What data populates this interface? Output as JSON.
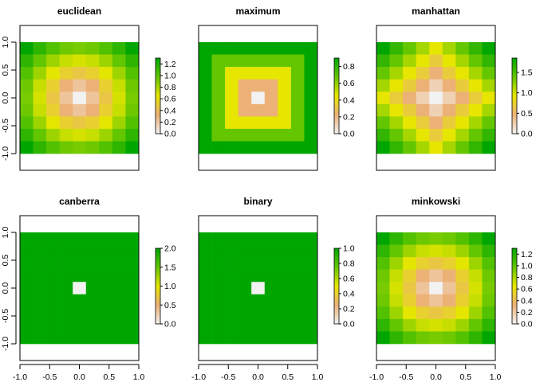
{
  "figure": {
    "layout": "2x3 grid of raster distance maps with color legends",
    "colors": {
      "ramp": [
        "#f2f2f2",
        "#ecb176",
        "#e6e600",
        "#63c600",
        "#00a600"
      ],
      "frame": "#000000"
    }
  },
  "chart_data": [
    {
      "type": "heatmap",
      "title": "euclidean",
      "xlim": [
        -1,
        1
      ],
      "ylim": [
        -1.3,
        1.3
      ],
      "x_ticks": [
        "-1.0",
        "-0.5",
        "0.0",
        "0.5",
        "1.0"
      ],
      "y_ticks": [
        "-1.0",
        "-0.5",
        "0.0",
        "0.5",
        "1.0"
      ],
      "show_x_axis": false,
      "show_y_axis": true,
      "grid": {
        "nrow": 9,
        "ncol": 9,
        "x_range": [
          -1,
          1
        ],
        "y_range": [
          -1,
          1
        ],
        "cell_value": "euclidean distance from center cell"
      },
      "value_range": [
        0,
        1.41
      ],
      "legend": {
        "range": [
          0,
          1.3
        ],
        "ticks": [
          "0.0",
          "0.2",
          "0.4",
          "0.6",
          "0.8",
          "1.0",
          "1.2"
        ]
      }
    },
    {
      "type": "heatmap",
      "title": "maximum",
      "xlim": [
        -1,
        1
      ],
      "ylim": [
        -1.3,
        1.3
      ],
      "x_ticks": [
        "-1.0",
        "-0.5",
        "0.0",
        "0.5",
        "1.0"
      ],
      "y_ticks": [
        "-1.0",
        "-0.5",
        "0.0",
        "0.5",
        "1.0"
      ],
      "show_x_axis": false,
      "show_y_axis": false,
      "grid": {
        "nrow": 9,
        "ncol": 9,
        "x_range": [
          -1,
          1
        ],
        "y_range": [
          -1,
          1
        ],
        "cell_value": "maximum (chebyshev) distance from center cell"
      },
      "value_range": [
        0,
        1.0
      ],
      "legend": {
        "range": [
          0,
          0.9
        ],
        "ticks": [
          "0.0",
          "0.2",
          "0.4",
          "0.6",
          "0.8"
        ]
      }
    },
    {
      "type": "heatmap",
      "title": "manhattan",
      "xlim": [
        -1,
        1
      ],
      "ylim": [
        -1.3,
        1.3
      ],
      "x_ticks": [
        "-1.0",
        "-0.5",
        "0.0",
        "0.5",
        "1.0"
      ],
      "y_ticks": [
        "-1.0",
        "-0.5",
        "0.0",
        "0.5",
        "1.0"
      ],
      "show_x_axis": false,
      "show_y_axis": false,
      "grid": {
        "nrow": 9,
        "ncol": 9,
        "x_range": [
          -1,
          1
        ],
        "y_range": [
          -1,
          1
        ],
        "cell_value": "manhattan distance from center cell"
      },
      "value_range": [
        0,
        2.0
      ],
      "legend": {
        "range": [
          0,
          1.85
        ],
        "ticks": [
          "0.0",
          "0.5",
          "1.0",
          "1.5"
        ]
      }
    },
    {
      "type": "heatmap",
      "title": "canberra",
      "xlim": [
        -1,
        1
      ],
      "ylim": [
        -1.3,
        1.3
      ],
      "x_ticks": [
        "-1.0",
        "-0.5",
        "0.0",
        "0.5",
        "1.0"
      ],
      "y_ticks": [
        "-1.0",
        "-0.5",
        "0.0",
        "0.5",
        "1.0"
      ],
      "show_x_axis": true,
      "show_y_axis": true,
      "grid": {
        "nrow": 9,
        "ncol": 9,
        "x_range": [
          -1,
          1
        ],
        "y_range": [
          -1,
          1
        ],
        "cell_value": "0 at center cell, 2 elsewhere"
      },
      "value_range": [
        0,
        2.0
      ],
      "legend": {
        "range": [
          0,
          2.0
        ],
        "ticks": [
          "0.0",
          "0.5",
          "1.0",
          "1.5",
          "2.0"
        ]
      }
    },
    {
      "type": "heatmap",
      "title": "binary",
      "xlim": [
        -1,
        1
      ],
      "ylim": [
        -1.3,
        1.3
      ],
      "x_ticks": [
        "-1.0",
        "-0.5",
        "0.0",
        "0.5",
        "1.0"
      ],
      "y_ticks": [
        "-1.0",
        "-0.5",
        "0.0",
        "0.5",
        "1.0"
      ],
      "show_x_axis": true,
      "show_y_axis": false,
      "grid": {
        "nrow": 9,
        "ncol": 9,
        "x_range": [
          -1,
          1
        ],
        "y_range": [
          -1,
          1
        ],
        "cell_value": "0 at center cell, 1 elsewhere"
      },
      "value_range": [
        0,
        1.0
      ],
      "legend": {
        "range": [
          0,
          1.0
        ],
        "ticks": [
          "0.0",
          "0.2",
          "0.4",
          "0.6",
          "0.8",
          "1.0"
        ]
      }
    },
    {
      "type": "heatmap",
      "title": "minkowski",
      "xlim": [
        -1,
        1
      ],
      "ylim": [
        -1.3,
        1.3
      ],
      "x_ticks": [
        "-1.0",
        "-0.5",
        "0.0",
        "0.5",
        "1.0"
      ],
      "y_ticks": [
        "-1.0",
        "-0.5",
        "0.0",
        "0.5",
        "1.0"
      ],
      "show_x_axis": true,
      "show_y_axis": false,
      "grid": {
        "nrow": 9,
        "ncol": 9,
        "x_range": [
          -1,
          1
        ],
        "y_range": [
          -1,
          1
        ],
        "cell_value": "minkowski (p=2) distance from center cell"
      },
      "value_range": [
        0,
        1.41
      ],
      "legend": {
        "range": [
          0,
          1.3
        ],
        "ticks": [
          "0.0",
          "0.2",
          "0.4",
          "0.6",
          "0.8",
          "1.0",
          "1.2"
        ]
      }
    }
  ]
}
